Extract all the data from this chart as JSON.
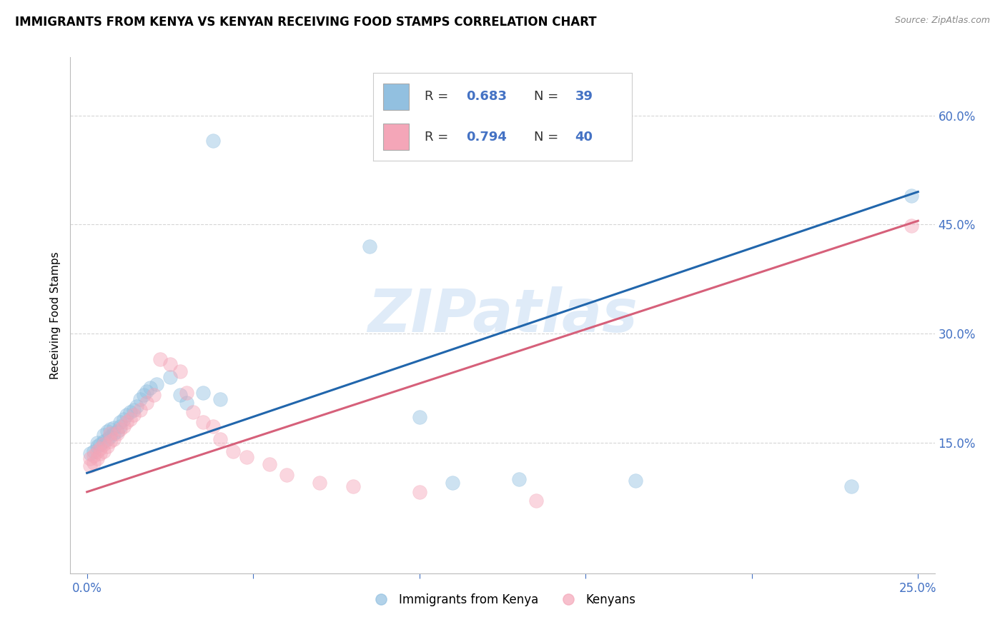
{
  "title": "IMMIGRANTS FROM KENYA VS KENYAN RECEIVING FOOD STAMPS CORRELATION CHART",
  "source": "Source: ZipAtlas.com",
  "ylabel": "Receiving Food Stamps",
  "ytick_labels": [
    "15.0%",
    "30.0%",
    "45.0%",
    "60.0%"
  ],
  "ytick_positions": [
    0.15,
    0.3,
    0.45,
    0.6
  ],
  "legend_label_blue": "Immigrants from Kenya",
  "legend_label_pink": "Kenyans",
  "watermark": "ZIPatlas",
  "blue_color": "#92c0e0",
  "pink_color": "#f4a6b8",
  "blue_line_color": "#2166ac",
  "pink_line_color": "#d6607a",
  "blue_scatter": [
    [
      0.001,
      0.135
    ],
    [
      0.002,
      0.138
    ],
    [
      0.003,
      0.145
    ],
    [
      0.003,
      0.15
    ],
    [
      0.004,
      0.148
    ],
    [
      0.005,
      0.152
    ],
    [
      0.005,
      0.16
    ],
    [
      0.006,
      0.155
    ],
    [
      0.006,
      0.165
    ],
    [
      0.007,
      0.158
    ],
    [
      0.007,
      0.168
    ],
    [
      0.008,
      0.162
    ],
    [
      0.008,
      0.17
    ],
    [
      0.009,
      0.165
    ],
    [
      0.01,
      0.172
    ],
    [
      0.01,
      0.178
    ],
    [
      0.011,
      0.182
    ],
    [
      0.012,
      0.188
    ],
    [
      0.013,
      0.192
    ],
    [
      0.014,
      0.195
    ],
    [
      0.015,
      0.2
    ],
    [
      0.016,
      0.21
    ],
    [
      0.017,
      0.215
    ],
    [
      0.018,
      0.22
    ],
    [
      0.019,
      0.225
    ],
    [
      0.021,
      0.23
    ],
    [
      0.025,
      0.24
    ],
    [
      0.028,
      0.215
    ],
    [
      0.03,
      0.205
    ],
    [
      0.035,
      0.218
    ],
    [
      0.04,
      0.21
    ],
    [
      0.038,
      0.565
    ],
    [
      0.085,
      0.42
    ],
    [
      0.1,
      0.185
    ],
    [
      0.11,
      0.095
    ],
    [
      0.13,
      0.1
    ],
    [
      0.165,
      0.098
    ],
    [
      0.23,
      0.09
    ],
    [
      0.248,
      0.49
    ]
  ],
  "pink_scatter": [
    [
      0.001,
      0.128
    ],
    [
      0.001,
      0.118
    ],
    [
      0.002,
      0.122
    ],
    [
      0.002,
      0.132
    ],
    [
      0.003,
      0.138
    ],
    [
      0.003,
      0.128
    ],
    [
      0.004,
      0.142
    ],
    [
      0.004,
      0.135
    ],
    [
      0.005,
      0.148
    ],
    [
      0.005,
      0.138
    ],
    [
      0.006,
      0.145
    ],
    [
      0.007,
      0.152
    ],
    [
      0.007,
      0.162
    ],
    [
      0.008,
      0.155
    ],
    [
      0.009,
      0.162
    ],
    [
      0.01,
      0.168
    ],
    [
      0.011,
      0.172
    ],
    [
      0.012,
      0.178
    ],
    [
      0.013,
      0.182
    ],
    [
      0.014,
      0.188
    ],
    [
      0.016,
      0.195
    ],
    [
      0.018,
      0.205
    ],
    [
      0.02,
      0.215
    ],
    [
      0.022,
      0.265
    ],
    [
      0.025,
      0.258
    ],
    [
      0.028,
      0.248
    ],
    [
      0.03,
      0.218
    ],
    [
      0.032,
      0.192
    ],
    [
      0.035,
      0.178
    ],
    [
      0.038,
      0.172
    ],
    [
      0.04,
      0.155
    ],
    [
      0.044,
      0.138
    ],
    [
      0.048,
      0.13
    ],
    [
      0.055,
      0.12
    ],
    [
      0.06,
      0.105
    ],
    [
      0.07,
      0.095
    ],
    [
      0.08,
      0.09
    ],
    [
      0.1,
      0.082
    ],
    [
      0.135,
      0.07
    ],
    [
      0.248,
      0.448
    ]
  ],
  "blue_line_x": [
    0.0,
    0.25
  ],
  "blue_line_y": [
    0.108,
    0.495
  ],
  "pink_line_x": [
    0.0,
    0.25
  ],
  "pink_line_y": [
    0.082,
    0.455
  ],
  "xlim": [
    -0.005,
    0.255
  ],
  "ylim": [
    -0.03,
    0.68
  ],
  "axis_color": "#4472c4",
  "grid_color": "#cccccc",
  "background_color": "#ffffff",
  "title_fontsize": 12,
  "label_fontsize": 11,
  "tick_fontsize": 12,
  "scatter_size": 200,
  "scatter_alpha": 0.45,
  "scatter_linewidth": 0.5
}
